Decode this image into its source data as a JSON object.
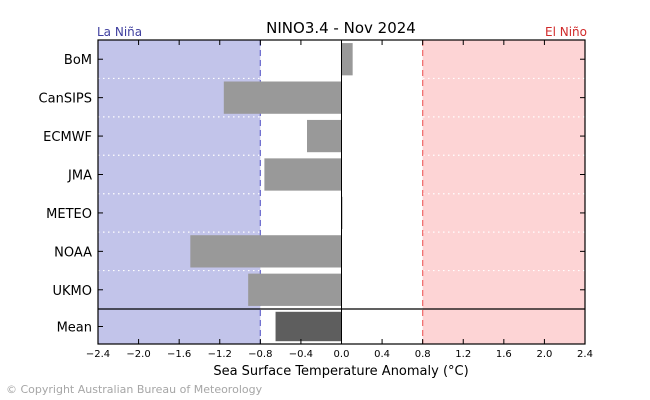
{
  "chart_data": {
    "type": "bar",
    "orientation": "horizontal",
    "title": "NINO3.4 - Nov 2024",
    "xlabel": "Sea Surface Temperature Anomaly (°C)",
    "ylabel": "",
    "xlim": [
      -2.4,
      2.4
    ],
    "xticks": [
      -2.4,
      -2.0,
      -1.6,
      -1.2,
      -0.8,
      -0.4,
      0.0,
      0.4,
      0.8,
      1.2,
      1.6,
      2.0,
      2.4
    ],
    "xtick_labels": [
      "−2.4",
      "−2.0",
      "−1.6",
      "−1.2",
      "−0.8",
      "−0.4",
      "0.0",
      "0.4",
      "0.8",
      "1.2",
      "1.6",
      "2.0",
      "2.4"
    ],
    "categories": [
      "BoM",
      "CanSIPS",
      "ECMWF",
      "JMA",
      "METEO",
      "NOAA",
      "UKMO"
    ],
    "values": [
      0.11,
      -1.16,
      -0.34,
      -0.76,
      0.01,
      -1.49,
      -0.92
    ],
    "mean": {
      "label": "Mean",
      "value": -0.65
    },
    "thresholds": {
      "la_nina": {
        "label": "La Niña",
        "value": -0.8,
        "color": "#3f3f9f",
        "fill": "#c2c4ea",
        "line": "#7070d0"
      },
      "el_nino": {
        "label": "El Niño",
        "value": 0.8,
        "color": "#d02a2a",
        "fill": "#fdd4d5",
        "line": "#f07070"
      }
    },
    "colors": {
      "bar": "#999999",
      "mean_bar": "#5e5e5e"
    },
    "grid": false
  },
  "footer": {
    "copyright": "© Copyright Australian Bureau of Meteorology"
  }
}
